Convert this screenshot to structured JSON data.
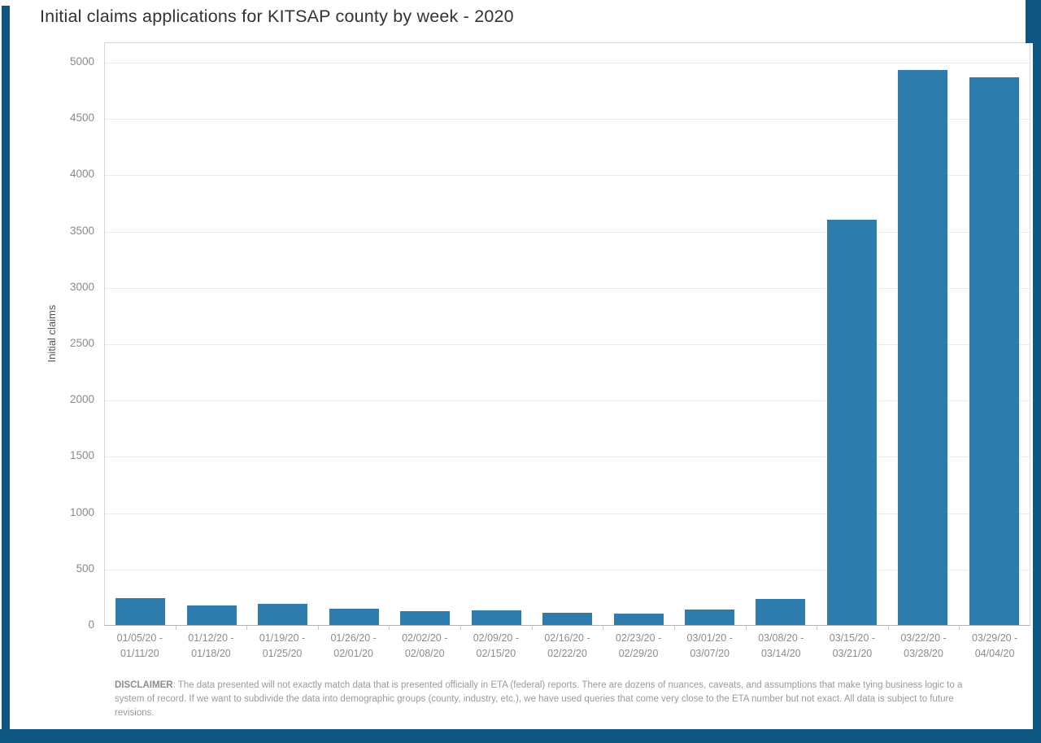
{
  "page": {
    "frame_color": "#0f5582",
    "background_color": "#ffffff"
  },
  "chart_data": {
    "type": "bar",
    "title": "Initial claims applications for KITSAP county by week - 2020",
    "xlabel": "",
    "ylabel": "Initial claims",
    "ylim": [
      0,
      5000
    ],
    "ytick_step": 500,
    "grid": true,
    "legend": "none",
    "bar_color": "#2e7bad",
    "categories": [
      "01/05/20 - 01/11/20",
      "01/12/20 - 01/18/20",
      "01/19/20 - 01/25/20",
      "01/26/20 - 02/01/20",
      "02/02/20 - 02/08/20",
      "02/09/20 - 02/15/20",
      "02/16/20 - 02/22/20",
      "02/23/20 - 02/29/20",
      "03/01/20 - 03/07/20",
      "03/08/20 - 03/14/20",
      "03/15/20 - 03/21/20",
      "03/22/20 - 03/28/20",
      "03/29/20 - 04/04/20"
    ],
    "values": [
      235,
      175,
      190,
      145,
      125,
      130,
      110,
      100,
      140,
      230,
      3600,
      4930,
      4860
    ]
  },
  "disclaimer": {
    "label": "DISCLAIMER",
    "text": ": The data presented will not exactly match data that is presented officially in ETA (federal) reports. There are dozens of nuances, caveats, and assumptions that make tying business logic to a system of record. If we want to subdivide the data into demographic groups (county, industry, etc.), we have used queries that come very close to the ETA number but not exact.  All data is subject to future revisions."
  }
}
